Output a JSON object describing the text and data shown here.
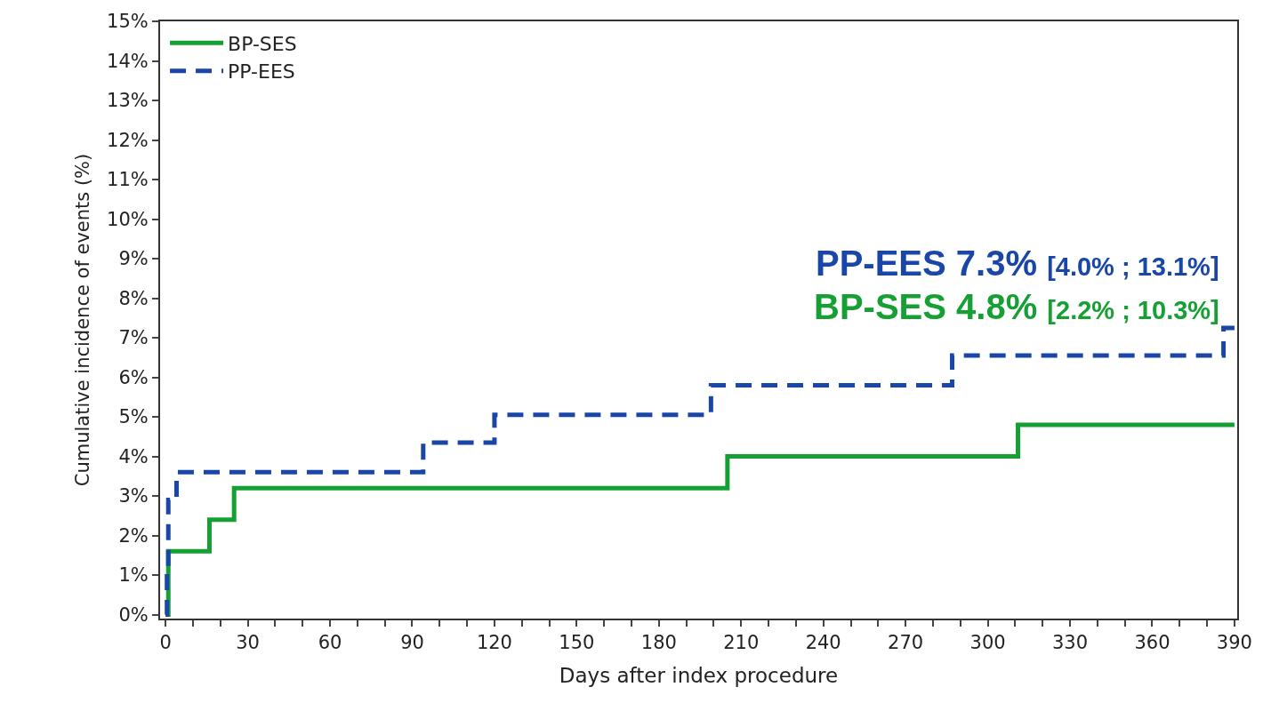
{
  "chart_data": {
    "type": "step",
    "xlabel": "Days after index procedure",
    "ylabel": "Cumulative incidence of events (%)",
    "series": [
      {
        "name": "BP-SES",
        "color": "#16a034",
        "line_style": "solid",
        "x": [
          0,
          1,
          16,
          25,
          205,
          311,
          390
        ],
        "values": [
          0,
          1.6,
          2.4,
          3.2,
          4.0,
          4.8,
          4.8
        ]
      },
      {
        "name": "PP-EES",
        "color": "#1a46a8",
        "line_style": "dashed",
        "x": [
          0,
          0.5,
          1,
          4,
          94,
          120,
          199,
          287,
          386,
          390
        ],
        "values": [
          0,
          1.2,
          2.9,
          3.6,
          4.35,
          5.05,
          5.8,
          6.55,
          7.25,
          7.25
        ]
      }
    ],
    "annotations": [
      "PP-EES 7.3%",
      "[4.0% ; 13.1%]",
      "BP-SES 4.8%",
      "[2.2% ; 10.3%]"
    ],
    "xlim": [
      -2,
      391
    ],
    "ylim": [
      -0.1,
      15
    ],
    "xticks": [
      0,
      {
        "value": 10,
        "label": null
      },
      {
        "value": 20,
        "label": null
      },
      30,
      {
        "value": 40,
        "label": null
      },
      {
        "value": 50,
        "label": null
      },
      60,
      {
        "value": 70,
        "label": null
      },
      {
        "value": 80,
        "label": null
      },
      90,
      {
        "value": 100,
        "label": null
      },
      {
        "value": 110,
        "label": null
      },
      120,
      {
        "value": 130,
        "label": null
      },
      {
        "value": 140,
        "label": null
      },
      150,
      {
        "value": 160,
        "label": null
      },
      {
        "value": 170,
        "label": null
      },
      180,
      {
        "value": 190,
        "label": null
      },
      {
        "value": 200,
        "label": null
      },
      210,
      {
        "value": 220,
        "label": null
      },
      {
        "value": 230,
        "label": null
      },
      240,
      {
        "value": 250,
        "label": null
      },
      {
        "value": 260,
        "label": null
      },
      270,
      {
        "value": 280,
        "label": null
      },
      {
        "value": 290,
        "label": null
      },
      300,
      {
        "value": 310,
        "label": null
      },
      {
        "value": 320,
        "label": null
      },
      330,
      {
        "value": 340,
        "label": null
      },
      {
        "value": 350,
        "label": null
      },
      360,
      {
        "value": 370,
        "label": null
      },
      {
        "value": 380,
        "label": null
      },
      390
    ],
    "yticks": [
      {
        "value": 0,
        "label": "0%"
      },
      {
        "value": 1,
        "label": "1%"
      },
      {
        "value": 2,
        "label": "2%"
      },
      {
        "value": 3,
        "label": "3%"
      },
      {
        "value": 4,
        "label": "4%"
      },
      {
        "value": 5,
        "label": "5%"
      },
      {
        "value": 6,
        "label": "6%"
      },
      {
        "value": 7,
        "label": "7%"
      },
      {
        "value": 8,
        "label": "8%"
      },
      {
        "value": 9,
        "label": "9%"
      },
      {
        "value": 10,
        "label": "10%"
      },
      {
        "value": 11,
        "label": "11%"
      },
      {
        "value": 12,
        "label": "12%"
      },
      {
        "value": 13,
        "label": "13%"
      },
      {
        "value": 14,
        "label": "14%"
      },
      {
        "value": 15,
        "label": "15%"
      }
    ],
    "grid": false,
    "legend": "top left",
    "marker": "none"
  }
}
